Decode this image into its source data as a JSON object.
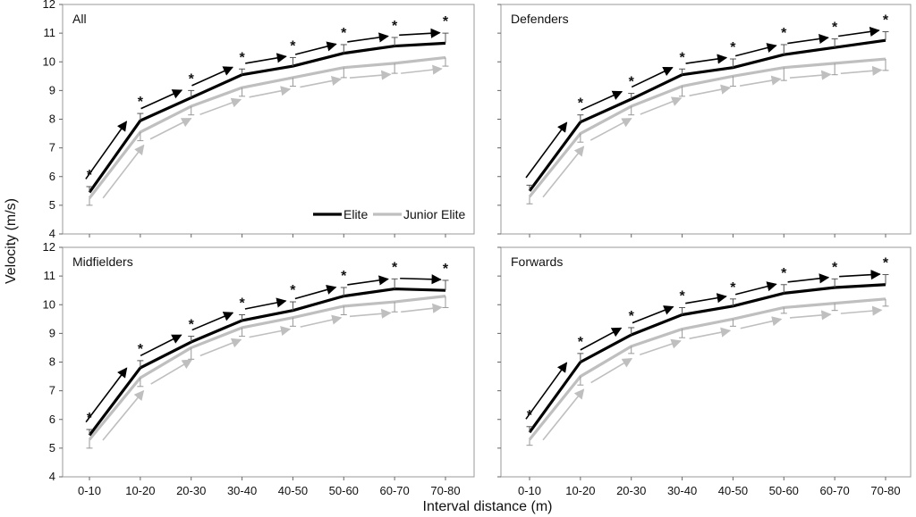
{
  "colors": {
    "elite": "#000000",
    "junior": "#bfbfbf",
    "frame": "#999999"
  },
  "axis": {
    "xlabel": "Interval distance (m)",
    "ylabel": "Velocity (m/s)"
  },
  "legend": {
    "elite": "Elite",
    "junior": "Junior Elite"
  },
  "chart_data": [
    {
      "type": "line",
      "title": "All",
      "categories": [
        "0-10",
        "10-20",
        "20-30",
        "30-40",
        "40-50",
        "50-60",
        "60-70",
        "70-80"
      ],
      "ylim": [
        4,
        12
      ],
      "yticks": [
        "4",
        "5",
        "6",
        "7",
        "8",
        "9",
        "10",
        "11",
        "12"
      ],
      "series": [
        {
          "name": "Elite",
          "values": [
            5.45,
            7.95,
            8.75,
            9.55,
            9.85,
            10.3,
            10.55,
            10.65
          ],
          "errors": [
            0.2,
            0.25,
            0.25,
            0.2,
            0.3,
            0.3,
            0.3,
            0.35
          ]
        },
        {
          "name": "Junior Elite",
          "values": [
            5.25,
            7.55,
            8.45,
            9.1,
            9.45,
            9.8,
            9.95,
            10.15
          ],
          "errors": [
            0.25,
            0.3,
            0.3,
            0.3,
            0.3,
            0.35,
            0.35,
            0.3
          ]
        }
      ],
      "significant": [
        "*",
        "*",
        "*",
        "*",
        "*",
        "*",
        "*",
        "*"
      ]
    },
    {
      "type": "line",
      "title": "Defenders",
      "categories": [
        "0-10",
        "10-20",
        "20-30",
        "30-40",
        "40-50",
        "50-60",
        "60-70",
        "70-80"
      ],
      "ylim": [
        4,
        12
      ],
      "yticks": [
        "4",
        "5",
        "6",
        "7",
        "8",
        "9",
        "10",
        "11",
        "12"
      ],
      "series": [
        {
          "name": "Elite",
          "values": [
            5.5,
            7.9,
            8.7,
            9.55,
            9.8,
            10.25,
            10.5,
            10.75
          ],
          "errors": [
            0.2,
            0.25,
            0.2,
            0.2,
            0.3,
            0.35,
            0.3,
            0.3
          ]
        },
        {
          "name": "Junior Elite",
          "values": [
            5.3,
            7.5,
            8.45,
            9.15,
            9.5,
            9.8,
            9.95,
            10.1
          ],
          "errors": [
            0.25,
            0.3,
            0.3,
            0.35,
            0.35,
            0.45,
            0.4,
            0.4
          ]
        }
      ],
      "significant": [
        "",
        "*",
        "*",
        "*",
        "*",
        "*",
        "*",
        "*"
      ]
    },
    {
      "type": "line",
      "title": "Midfielders",
      "categories": [
        "0-10",
        "10-20",
        "20-30",
        "30-40",
        "40-50",
        "50-60",
        "60-70",
        "70-80"
      ],
      "ylim": [
        4,
        12
      ],
      "yticks": [
        "4",
        "5",
        "6",
        "7",
        "8",
        "9",
        "10",
        "11",
        "12"
      ],
      "series": [
        {
          "name": "Elite",
          "values": [
            5.45,
            7.8,
            8.7,
            9.45,
            9.8,
            10.3,
            10.55,
            10.5
          ],
          "errors": [
            0.2,
            0.25,
            0.2,
            0.2,
            0.3,
            0.3,
            0.35,
            0.35
          ]
        },
        {
          "name": "Junior Elite",
          "values": [
            5.3,
            7.45,
            8.5,
            9.2,
            9.55,
            9.95,
            10.1,
            10.3
          ],
          "errors": [
            0.3,
            0.3,
            0.4,
            0.3,
            0.3,
            0.3,
            0.35,
            0.4
          ]
        }
      ],
      "significant": [
        "*",
        "*",
        "*",
        "*",
        "*",
        "*",
        "*",
        "*"
      ]
    },
    {
      "type": "line",
      "title": "Forwards",
      "categories": [
        "0-10",
        "10-20",
        "20-30",
        "30-40",
        "40-50",
        "50-60",
        "60-70",
        "70-80"
      ],
      "ylim": [
        4,
        12
      ],
      "yticks": [
        "4",
        "5",
        "6",
        "7",
        "8",
        "9",
        "10",
        "11",
        "12"
      ],
      "series": [
        {
          "name": "Elite",
          "values": [
            5.55,
            8.0,
            8.95,
            9.65,
            9.95,
            10.4,
            10.6,
            10.7
          ],
          "errors": [
            0.2,
            0.3,
            0.25,
            0.25,
            0.25,
            0.3,
            0.3,
            0.35
          ]
        },
        {
          "name": "Junior Elite",
          "values": [
            5.3,
            7.5,
            8.55,
            9.15,
            9.5,
            9.9,
            10.05,
            10.2
          ],
          "errors": [
            0.2,
            0.3,
            0.25,
            0.3,
            0.25,
            0.2,
            0.25,
            0.25
          ]
        }
      ],
      "significant": [
        "*",
        "*",
        "*",
        "*",
        "*",
        "*",
        "*",
        "*"
      ]
    }
  ]
}
